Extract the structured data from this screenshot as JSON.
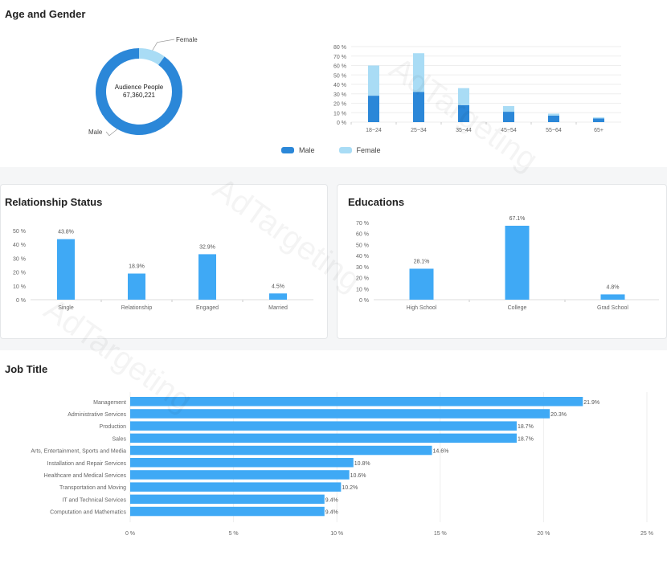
{
  "colors": {
    "male": "#2b87d8",
    "female": "#a9dcf5",
    "bar": "#3fa9f5",
    "axis_text": "#666",
    "grid": "#eeeeee"
  },
  "sections": {
    "age_gender": "Age and Gender",
    "relationship": "Relationship Status",
    "education": "Educations",
    "job": "Job Title"
  },
  "watermark": "AdTargeting",
  "donut": {
    "center_label": "Audience People",
    "center_value": "67,360,221",
    "male_label": "Male",
    "female_label": "Female"
  },
  "chart_data": [
    {
      "id": "gender-donut",
      "type": "pie",
      "labels": [
        "Male",
        "Female"
      ],
      "values": [
        90,
        10
      ],
      "center_text": [
        "Audience People",
        "67,360,221"
      ]
    },
    {
      "id": "age-gender",
      "type": "bar",
      "stacked": true,
      "categories": [
        "18~24",
        "25~34",
        "35~44",
        "45~54",
        "55~64",
        "65+"
      ],
      "series": [
        {
          "name": "Male",
          "values": [
            28,
            32,
            18,
            11,
            7,
            4
          ]
        },
        {
          "name": "Female",
          "values": [
            32,
            41,
            18,
            6,
            2,
            1
          ]
        }
      ],
      "ylim": [
        0,
        80
      ],
      "yticks": [
        "80 %",
        "70 %",
        "60 %",
        "50 %",
        "40 %",
        "30 %",
        "20 %",
        "10 %",
        "0 %"
      ],
      "legend": "bottom",
      "grid": true
    },
    {
      "id": "relationship",
      "type": "bar",
      "categories": [
        "Single",
        "Relationship",
        "Engaged",
        "Married"
      ],
      "values": [
        43.8,
        18.9,
        32.9,
        4.5
      ],
      "labels": [
        "43.8%",
        "18.9%",
        "32.9%",
        "4.5%"
      ],
      "ylim": [
        0,
        50
      ],
      "yticks": [
        "50 %",
        "40 %",
        "30 %",
        "20 %",
        "10 %",
        "0 %"
      ]
    },
    {
      "id": "education",
      "type": "bar",
      "categories": [
        "High School",
        "College",
        "Grad School"
      ],
      "values": [
        28.1,
        67.1,
        4.8
      ],
      "labels": [
        "28.1%",
        "67.1%",
        "4.8%"
      ],
      "ylim": [
        0,
        70
      ],
      "yticks": [
        "70 %",
        "60 %",
        "50 %",
        "40 %",
        "30 %",
        "20 %",
        "10 %",
        "0 %"
      ]
    },
    {
      "id": "job-title",
      "type": "bar",
      "orientation": "horizontal",
      "categories": [
        "Management",
        "Administrative Services",
        "Production",
        "Sales",
        "Arts, Entertainment, Sports and Media",
        "Installation and Repair Services",
        "Healthcare and Medical Services",
        "Transportation and Moving",
        "IT and Technical Services",
        "Computation and Mathematics"
      ],
      "values": [
        21.9,
        20.3,
        18.7,
        18.7,
        14.6,
        10.8,
        10.6,
        10.2,
        9.4,
        9.4
      ],
      "labels": [
        "21.9%",
        "20.3%",
        "18.7%",
        "18.7%",
        "14.6%",
        "10.8%",
        "10.6%",
        "10.2%",
        "9.4%",
        "9.4%"
      ],
      "xlim": [
        0,
        25
      ],
      "xticks": [
        "0 %",
        "5 %",
        "10 %",
        "15 %",
        "20 %",
        "25 %"
      ],
      "grid": true
    }
  ]
}
